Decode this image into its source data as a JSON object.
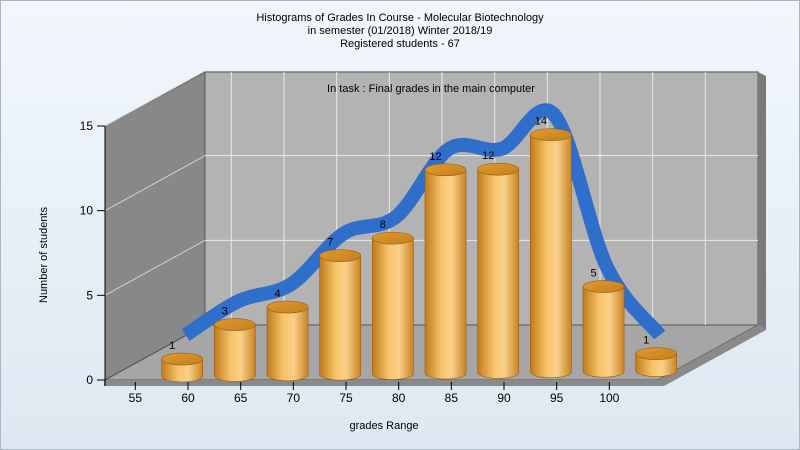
{
  "chart_data": {
    "type": "bar",
    "title_lines": [
      "Histograms of Grades  In Course - Molecular Biotechnology",
      "in semester  (01/2018) Winter 2018/19",
      "Registered students - 67"
    ],
    "annotation": "In task : Final grades in the main computer",
    "xlabel": "grades Range",
    "ylabel": "Number of students",
    "x_tick_labels": [
      "55",
      "60",
      "65",
      "70",
      "75",
      "80",
      "85",
      "90",
      "95",
      "100"
    ],
    "y_ticks": [
      0,
      5,
      10,
      15
    ],
    "ylim": [
      0,
      15
    ],
    "values": [
      1,
      3,
      4,
      7,
      8,
      12,
      12,
      14,
      5,
      1
    ],
    "grid": true,
    "bar_style": "3d-cylinder",
    "trend_line": "smoothed blue ribbon",
    "colors": {
      "bar_light": "#f8cf80",
      "bar_mid": "#e8a23c",
      "bar_dark": "#b86e14",
      "trend": "#2f6fcb",
      "back_wall": "#b3b3b3",
      "side_wall": "#888888",
      "floor": "#a6a6a6"
    }
  }
}
